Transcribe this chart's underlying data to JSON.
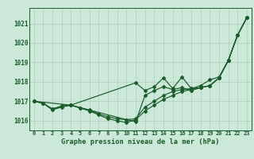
{
  "background_color": "#cce8d8",
  "plot_bg_color": "#cce8d8",
  "footer_bg_color": "#2d6e3e",
  "grid_color": "#aacfbb",
  "line_color": "#1a5c2a",
  "text_color": "#1a5c2a",
  "footer_text_color": "#ffffff",
  "xlabel": "Graphe pression niveau de la mer (hPa)",
  "xlim": [
    -0.5,
    23.5
  ],
  "ylim": [
    1015.5,
    1021.8
  ],
  "yticks": [
    1016,
    1017,
    1018,
    1019,
    1020,
    1021
  ],
  "xticks": [
    0,
    1,
    2,
    3,
    4,
    5,
    6,
    7,
    8,
    9,
    10,
    11,
    12,
    13,
    14,
    15,
    16,
    17,
    18,
    19,
    20,
    21,
    22,
    23
  ],
  "line1_x": [
    0,
    1,
    2,
    3,
    4,
    5,
    6,
    7,
    8,
    9,
    10,
    11,
    12,
    13,
    14,
    15,
    16,
    17,
    18,
    19,
    20,
    21,
    22,
    23
  ],
  "line1_y": [
    1017.0,
    1016.9,
    1016.6,
    1016.75,
    1016.8,
    1016.65,
    1016.5,
    1016.3,
    1016.1,
    1016.0,
    1015.9,
    1016.05,
    1016.5,
    1016.8,
    1017.1,
    1017.3,
    1017.5,
    1017.6,
    1017.7,
    1017.8,
    1018.2,
    1019.1,
    1020.4,
    1021.3
  ],
  "line2_x": [
    0,
    1,
    2,
    3,
    4,
    5,
    6,
    7,
    8,
    9,
    10,
    11,
    12,
    13,
    14,
    15,
    16,
    17,
    18,
    19,
    20,
    21,
    22,
    23
  ],
  "line2_y": [
    1017.0,
    1016.9,
    1016.6,
    1016.75,
    1016.8,
    1016.65,
    1016.55,
    1016.35,
    1016.2,
    1016.1,
    1016.05,
    1016.1,
    1016.7,
    1017.0,
    1017.3,
    1017.5,
    1017.6,
    1017.65,
    1017.7,
    1017.8,
    1018.2,
    1019.1,
    1020.4,
    1021.3
  ],
  "line3_x": [
    0,
    1,
    2,
    3,
    4,
    10,
    11,
    12,
    13,
    14,
    15,
    16,
    17,
    18,
    19,
    20,
    21,
    22,
    23
  ],
  "line3_y": [
    1017.0,
    1016.9,
    1016.55,
    1016.7,
    1016.8,
    1016.05,
    1015.95,
    1017.3,
    1017.55,
    1017.75,
    1017.6,
    1017.7,
    1017.55,
    1017.7,
    1017.8,
    1018.2,
    1019.1,
    1020.4,
    1021.3
  ],
  "line4_x": [
    0,
    4,
    11,
    12,
    13,
    14,
    15,
    16,
    17,
    18,
    19,
    20,
    21,
    22,
    23
  ],
  "line4_y": [
    1017.0,
    1016.8,
    1017.95,
    1017.55,
    1017.75,
    1018.2,
    1017.65,
    1018.25,
    1017.65,
    1017.8,
    1018.1,
    1018.25,
    1019.1,
    1020.4,
    1021.3
  ]
}
